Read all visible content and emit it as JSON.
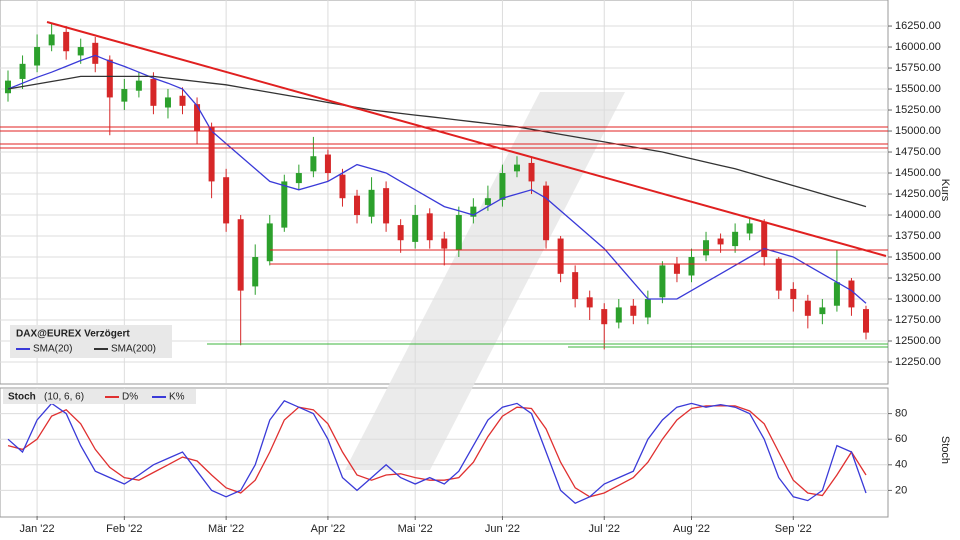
{
  "chart_data": [
    {
      "type": "candlestick",
      "name": "DAX@EUREX Verzögert",
      "ylabel": "Kurs",
      "up_color": "#2ca02c",
      "down_color": "#d62728",
      "grid": true,
      "ylim": [
        12000,
        16560
      ],
      "yticks": [
        {
          "value": 12250,
          "label": "12250.00"
        },
        {
          "value": 12500,
          "label": "12500.00"
        },
        {
          "value": 12750,
          "label": "12750.00"
        },
        {
          "value": 13000,
          "label": "13000.00"
        },
        {
          "value": 13250,
          "label": "13250.00"
        },
        {
          "value": 13500,
          "label": "13500.00"
        },
        {
          "value": 13750,
          "label": "13750.00"
        },
        {
          "value": 14000,
          "label": "14000.00"
        },
        {
          "value": 14250,
          "label": "14250.00"
        },
        {
          "value": 14500,
          "label": "14500.00"
        },
        {
          "value": 14750,
          "label": "14750.00"
        },
        {
          "value": 15000,
          "label": "15000.00"
        },
        {
          "value": 15250,
          "label": "15250.00"
        },
        {
          "value": 15500,
          "label": "15500.00"
        },
        {
          "value": 15750,
          "label": "15750.00"
        },
        {
          "value": 16000,
          "label": "16000.00"
        },
        {
          "value": 16250,
          "label": "16250.00"
        }
      ],
      "categories": [
        null,
        null,
        "Jan '22",
        null,
        null,
        null,
        null,
        null,
        "Feb '22",
        null,
        null,
        null,
        null,
        null,
        null,
        "Mär '22",
        null,
        null,
        null,
        null,
        null,
        null,
        "Apr '22",
        null,
        null,
        null,
        null,
        null,
        "Mai '22",
        null,
        null,
        null,
        null,
        null,
        "Jun '22",
        null,
        null,
        null,
        null,
        null,
        null,
        "Jul '22",
        null,
        null,
        null,
        null,
        null,
        "Aug '22",
        null,
        null,
        null,
        null,
        null,
        null,
        "Sep '22",
        null,
        null,
        null,
        null,
        null
      ],
      "open": [
        15450,
        15620,
        15780,
        16020,
        16180,
        15900,
        16050,
        15850,
        15350,
        15480,
        15620,
        15280,
        15420,
        15320,
        15050,
        14450,
        13950,
        13150,
        13450,
        13850,
        14380,
        14520,
        14720,
        14480,
        14230,
        13980,
        14320,
        13880,
        13680,
        14020,
        13720,
        13580,
        13980,
        14120,
        14180,
        14520,
        14620,
        14350,
        13720,
        13320,
        13020,
        12880,
        12720,
        12920,
        12780,
        13020,
        13420,
        13280,
        13520,
        13720,
        13630,
        13780,
        13920,
        13480,
        13120,
        12980,
        12820,
        12920,
        13220,
        12880
      ],
      "high": [
        15720,
        15900,
        16150,
        16290,
        16250,
        16100,
        16120,
        15900,
        15620,
        15700,
        15700,
        15500,
        15520,
        15400,
        15100,
        14550,
        14000,
        13650,
        14000,
        14480,
        14600,
        14930,
        14780,
        14550,
        14300,
        14450,
        14400,
        13950,
        14120,
        14080,
        13800,
        14100,
        14200,
        14350,
        14600,
        14700,
        14680,
        14400,
        13750,
        13400,
        13100,
        12950,
        13000,
        13000,
        13100,
        13450,
        13500,
        13600,
        13800,
        13780,
        13900,
        13960,
        13950,
        13500,
        13200,
        13050,
        13000,
        13580,
        13250,
        12920
      ],
      "low": [
        15350,
        15500,
        15700,
        15950,
        15850,
        15800,
        15700,
        14950,
        15250,
        15400,
        15200,
        15150,
        15200,
        14850,
        14200,
        13800,
        12450,
        13050,
        13400,
        13800,
        14300,
        14450,
        14400,
        14100,
        13900,
        13900,
        13800,
        13550,
        13600,
        13600,
        13400,
        13500,
        13900,
        14050,
        14100,
        14450,
        14250,
        13600,
        13200,
        12900,
        12750,
        12400,
        12650,
        12700,
        12700,
        12950,
        13200,
        13200,
        13450,
        13550,
        13550,
        13700,
        13400,
        13000,
        12850,
        12650,
        12700,
        12850,
        12800,
        12520
      ],
      "close": [
        15600,
        15800,
        16000,
        16150,
        15950,
        16000,
        15800,
        15400,
        15500,
        15600,
        15300,
        15400,
        15300,
        15000,
        14400,
        13900,
        13100,
        13500,
        13900,
        14400,
        14500,
        14700,
        14500,
        14200,
        14000,
        14300,
        13900,
        13700,
        14000,
        13700,
        13600,
        14000,
        14100,
        14200,
        14500,
        14600,
        14400,
        13700,
        13300,
        13000,
        12900,
        12700,
        12900,
        12800,
        13000,
        13400,
        13300,
        13500,
        13700,
        13650,
        13800,
        13900,
        13500,
        13100,
        13000,
        12800,
        12900,
        13200,
        12900,
        12600
      ],
      "series": [
        {
          "name": "SMA(20)",
          "color": "#3a3ad8",
          "values": [
            15500,
            15570,
            15640,
            15700,
            15770,
            15840,
            15900,
            15830,
            15770,
            15700,
            15630,
            15570,
            15500,
            15300,
            15000,
            14850,
            14700,
            14550,
            14400,
            14350,
            14300,
            14350,
            14400,
            14500,
            14600,
            14550,
            14500,
            14400,
            14300,
            14200,
            14100,
            14050,
            14000,
            14100,
            14200,
            14250,
            14300,
            14200,
            14050,
            13900,
            13750,
            13600,
            13400,
            13200,
            13000,
            13000,
            13000,
            13100,
            13200,
            13300,
            13400,
            13500,
            13600,
            13550,
            13500,
            13400,
            13300,
            13200,
            13100,
            12950
          ]
        },
        {
          "name": "SMA(200)",
          "color": "#333333",
          "values": [
            15500,
            15530,
            15560,
            15590,
            15620,
            15650,
            15650,
            15650,
            15650,
            15650,
            15650,
            15630,
            15610,
            15590,
            15570,
            15550,
            15520,
            15490,
            15460,
            15430,
            15400,
            15370,
            15340,
            15310,
            15280,
            15250,
            15230,
            15210,
            15190,
            15170,
            15150,
            15130,
            15110,
            15090,
            15070,
            15050,
            15020,
            14990,
            14960,
            14930,
            14900,
            14870,
            14840,
            14810,
            14780,
            14750,
            14710,
            14670,
            14630,
            14590,
            14550,
            14500,
            14450,
            14400,
            14350,
            14300,
            14250,
            14200,
            14150,
            14100
          ]
        }
      ]
    },
    {
      "type": "line",
      "title": "Stoch",
      "subtitle": "(10, 6, 6)",
      "ylabel": "Stoch",
      "grid": true,
      "ylim": [
        0,
        100
      ],
      "yticks": [
        20,
        40,
        60,
        80
      ],
      "series": [
        {
          "name": "D%",
          "color": "#e03030",
          "values": [
            55,
            52,
            60,
            78,
            83,
            72,
            52,
            38,
            30,
            28,
            34,
            40,
            46,
            43,
            32,
            22,
            18,
            28,
            50,
            75,
            85,
            83,
            72,
            50,
            32,
            28,
            32,
            33,
            30,
            28,
            28,
            30,
            42,
            62,
            78,
            85,
            84,
            68,
            42,
            22,
            15,
            18,
            24,
            30,
            42,
            60,
            75,
            84,
            86,
            86,
            86,
            82,
            72,
            50,
            28,
            18,
            16,
            32,
            50,
            32
          ]
        },
        {
          "name": "K%",
          "color": "#3a3ad8",
          "values": [
            60,
            50,
            75,
            88,
            80,
            55,
            35,
            30,
            25,
            32,
            40,
            45,
            50,
            35,
            20,
            15,
            20,
            40,
            75,
            90,
            85,
            80,
            60,
            30,
            20,
            30,
            40,
            30,
            25,
            30,
            25,
            35,
            55,
            75,
            85,
            88,
            80,
            50,
            20,
            10,
            15,
            25,
            30,
            35,
            60,
            75,
            85,
            88,
            85,
            87,
            85,
            80,
            60,
            30,
            15,
            12,
            20,
            55,
            50,
            18
          ]
        }
      ]
    }
  ]
}
